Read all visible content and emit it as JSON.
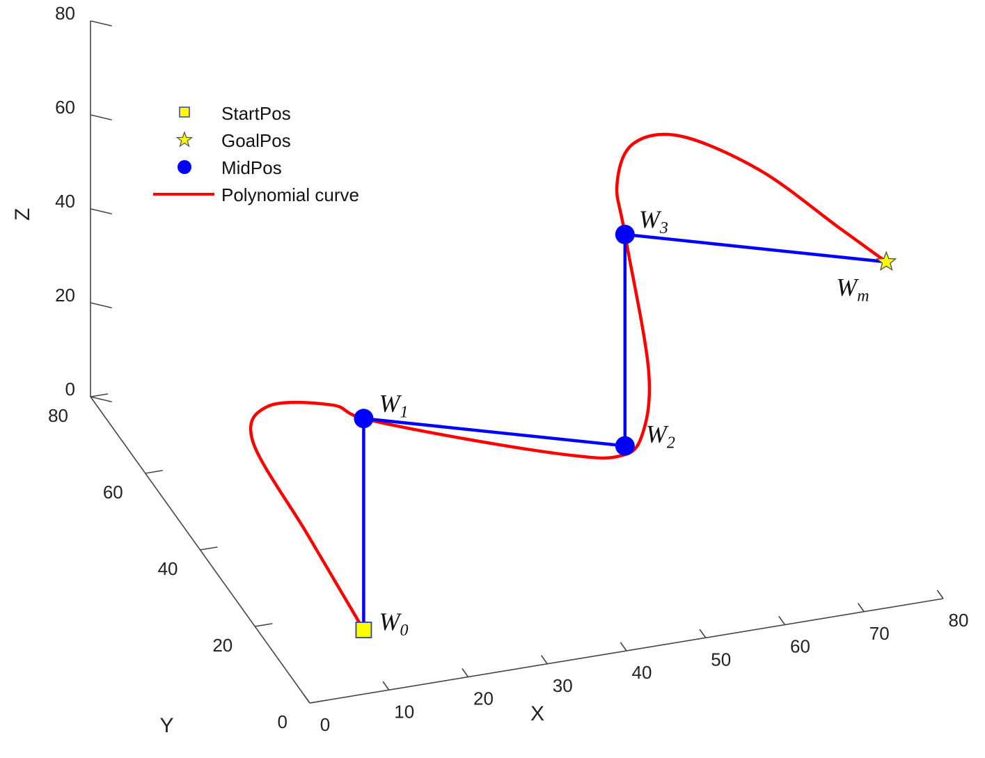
{
  "chart_data": {
    "type": "line",
    "projection": "3d",
    "axes": {
      "x": {
        "label": "X",
        "range": [
          0,
          80
        ],
        "ticks": [
          "0",
          "10",
          "20",
          "30",
          "40",
          "50",
          "60",
          "70",
          "80"
        ]
      },
      "y": {
        "label": "Y",
        "range": [
          0,
          80
        ],
        "ticks": [
          "0",
          "20",
          "40",
          "60",
          "80"
        ]
      },
      "z": {
        "label": "Z",
        "range": [
          0,
          80
        ],
        "ticks": [
          "0",
          "20",
          "40",
          "60",
          "80"
        ]
      }
    },
    "grid": false,
    "legend": {
      "placement": "top-left",
      "entries": [
        {
          "name": "StartPos",
          "marker": "square",
          "color": "#ffff00",
          "edge": "#2a3fbf"
        },
        {
          "name": "GoalPos",
          "marker": "star",
          "color": "#ffff00",
          "edge": "#555555"
        },
        {
          "name": "MidPos",
          "marker": "circle",
          "color": "#0000ff"
        },
        {
          "name": "Polynomial curve",
          "marker": "line",
          "color": "#ff0000"
        }
      ]
    },
    "waypoints": [
      {
        "label": "W",
        "sub": "0",
        "role": "StartPos",
        "x": 12,
        "y": 15,
        "z": 0
      },
      {
        "label": "W",
        "sub": "1",
        "role": "MidPos",
        "x": 12,
        "y": 15,
        "z": 45
      },
      {
        "label": "W",
        "sub": "2",
        "role": "MidPos",
        "x": 45,
        "y": 15,
        "z": 30
      },
      {
        "label": "W",
        "sub": "3",
        "role": "MidPos",
        "x": 45,
        "y": 15,
        "z": 75
      },
      {
        "label": "W",
        "sub": "m",
        "role": "GoalPos",
        "x": 78,
        "y": 15,
        "z": 60
      }
    ],
    "series": [
      {
        "name": "MidPos",
        "color": "#0000ff",
        "points": [
          {
            "x": 12,
            "y": 15,
            "z": 0
          },
          {
            "x": 12,
            "y": 15,
            "z": 45
          },
          {
            "x": 45,
            "y": 15,
            "z": 30
          },
          {
            "x": 45,
            "y": 15,
            "z": 75
          },
          {
            "x": 78,
            "y": 15,
            "z": 60
          }
        ]
      },
      {
        "name": "Polynomial curve",
        "color": "#ff0000",
        "points": [
          {
            "x": 12,
            "y": 15,
            "z": 0
          },
          {
            "x": 5,
            "y": 15,
            "z": 22
          },
          {
            "x": -2,
            "y": 15,
            "z": 44
          },
          {
            "x": 0,
            "y": 15,
            "z": 51
          },
          {
            "x": 8,
            "y": 15,
            "z": 49
          },
          {
            "x": 12,
            "y": 15,
            "z": 45
          },
          {
            "x": 25,
            "y": 15,
            "z": 37
          },
          {
            "x": 38,
            "y": 15,
            "z": 30
          },
          {
            "x": 44,
            "y": 15,
            "z": 28
          },
          {
            "x": 47,
            "y": 15,
            "z": 31
          },
          {
            "x": 48,
            "y": 15,
            "z": 45
          },
          {
            "x": 45,
            "y": 15,
            "z": 75
          },
          {
            "x": 44,
            "y": 15,
            "z": 86
          },
          {
            "x": 46,
            "y": 15,
            "z": 94
          },
          {
            "x": 52,
            "y": 15,
            "z": 94
          },
          {
            "x": 62,
            "y": 15,
            "z": 84
          },
          {
            "x": 72,
            "y": 15,
            "z": 69
          },
          {
            "x": 78,
            "y": 15,
            "z": 60
          }
        ]
      }
    ]
  }
}
